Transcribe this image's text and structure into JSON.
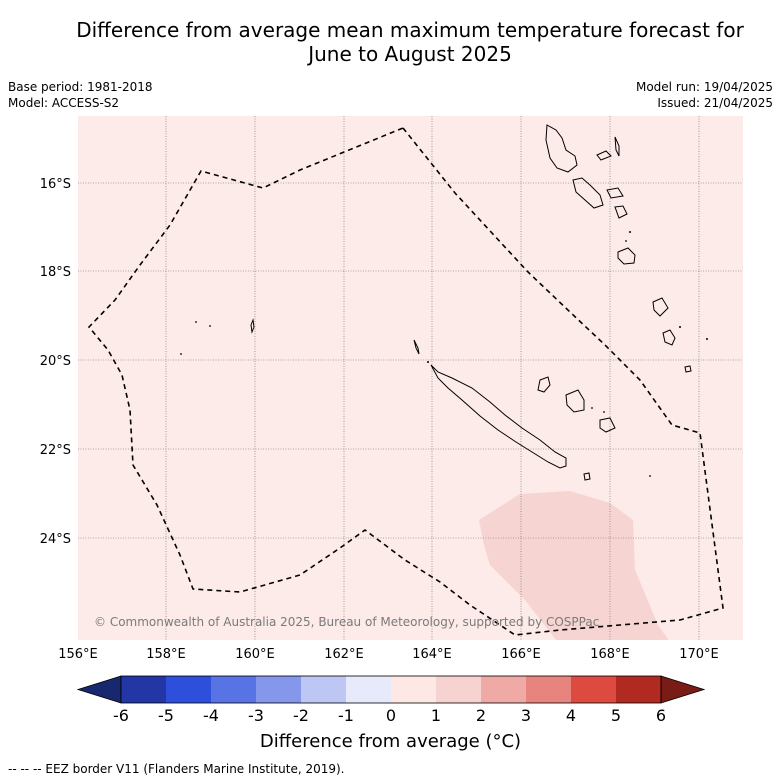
{
  "title_line1": "Difference from average mean maximum temperature forecast for",
  "title_line2": "June to August 2025",
  "meta": {
    "base_period": "Base period: 1981-2018",
    "model": "Model: ACCESS-S2",
    "model_run": "Model run: 19/04/2025",
    "issued": "Issued: 21/04/2025"
  },
  "copyright": "© Commonwealth of Australia 2025, Bureau of Meteorology, supported by COSPPac",
  "lon_ticks": [
    "156°E",
    "158°E",
    "160°E",
    "162°E",
    "164°E",
    "166°E",
    "168°E",
    "170°E"
  ],
  "lat_ticks": [
    "16°S",
    "18°S",
    "20°S",
    "22°S",
    "24°S"
  ],
  "colorbar": {
    "ticks": [
      "-6",
      "-5",
      "-4",
      "-3",
      "-2",
      "-1",
      "0",
      "1",
      "2",
      "3",
      "4",
      "5",
      "6"
    ],
    "colors": [
      "#2236a6",
      "#2e4fdc",
      "#5874e4",
      "#8497ea",
      "#bec6f3",
      "#e6eafa",
      "#fde8e6",
      "#f6d2d0",
      "#f0aaa6",
      "#e8847e",
      "#dc4a40",
      "#b02a22"
    ],
    "low_extend_color": "#17286e",
    "high_extend_color": "#7a1c16",
    "label": "Difference from average (°C)"
  },
  "map_fill_color": "#fcebe9",
  "warm_region_color": "#f6d4d2",
  "legend_note": "--  --  -- EEZ border V11 (Flanders Marine Institute, 2019)."
}
